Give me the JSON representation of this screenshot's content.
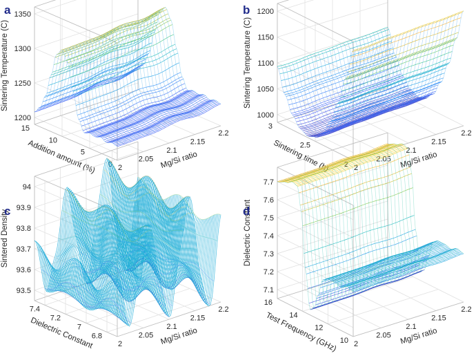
{
  "figure": {
    "colormap": [
      "#3e26a8",
      "#4755f4",
      "#2e87f7",
      "#1aa9df",
      "#1ebfaa",
      "#6bcc5e",
      "#c3c02c",
      "#fdb22f",
      "#f9e721"
    ],
    "wire_color_alpha": 0.85
  },
  "chart_data": [
    {
      "panel": "a",
      "type": "surface",
      "x_label": "Mg/Si ratio",
      "y_label": "Addition amount (%)",
      "z_label": "Sintering Temperature (C)",
      "x_ticks": [
        "2",
        "2.05",
        "2.1",
        "2.15",
        "2.2"
      ],
      "y_ticks": [
        "0",
        "5",
        "10",
        "15"
      ],
      "z_ticks": [
        "1200",
        "1250",
        "1300",
        "1350"
      ],
      "x_range": [
        2,
        2.2
      ],
      "y_range": [
        0,
        15
      ],
      "z_range": [
        1190,
        1360
      ],
      "profile_axis": "y",
      "profile": [
        [
          0,
          1210
        ],
        [
          1,
          1212
        ],
        [
          2,
          1209
        ],
        [
          3,
          1213
        ],
        [
          4,
          1210
        ],
        [
          5,
          1212
        ],
        [
          6,
          1209
        ],
        [
          7,
          1225
        ],
        [
          8,
          1262
        ],
        [
          9,
          1300
        ],
        [
          10,
          1315
        ],
        [
          11,
          1305
        ],
        [
          12,
          1272
        ],
        [
          13,
          1238
        ],
        [
          14,
          1218
        ],
        [
          15,
          1208
        ]
      ],
      "modulation": [
        [
          2,
          0
        ],
        [
          2.2,
          18
        ]
      ]
    },
    {
      "panel": "b",
      "type": "surface",
      "x_label": "Mg/Si ratio",
      "y_label": "Sintering time (h)",
      "z_label": "Sintering Temperature (C)",
      "x_ticks": [
        "2",
        "2.05",
        "2.1",
        "2.15",
        "2.2"
      ],
      "y_ticks": [
        "2",
        "2.5",
        "3"
      ],
      "z_ticks": [
        "1000",
        "1050",
        "1100",
        "1150",
        "1200"
      ],
      "x_range": [
        2,
        2.2
      ],
      "y_range": [
        2,
        3
      ],
      "z_range": [
        985,
        1215
      ],
      "profile_axis": "y",
      "profile": [
        [
          2,
          1202
        ],
        [
          2.1,
          1140
        ],
        [
          2.2,
          1085
        ],
        [
          2.3,
          1042
        ],
        [
          2.4,
          1012
        ],
        [
          2.5,
          997
        ],
        [
          2.6,
          992
        ],
        [
          2.7,
          999
        ],
        [
          2.8,
          1018
        ],
        [
          2.9,
          1050
        ],
        [
          3,
          1097
        ]
      ],
      "modulation": [
        [
          2,
          -8
        ],
        [
          2.2,
          8
        ]
      ]
    },
    {
      "panel": "c",
      "type": "surface",
      "x_label": "Mg/Si ratio",
      "y_label": "Dielectric Constant",
      "z_label": "Sintered Density",
      "x_ticks": [
        "2",
        "2.05",
        "2.1",
        "2.15",
        "2.2"
      ],
      "y_ticks": [
        "6.8",
        "7",
        "7.2",
        "7.4"
      ],
      "z_ticks": [
        "93.5",
        "93.6",
        "93.7",
        "93.8",
        "93.9",
        "94"
      ],
      "x_range": [
        2,
        2.2
      ],
      "y_range": [
        6.7,
        7.5
      ],
      "z_range": [
        93.45,
        94.05
      ],
      "profile_axis": "x",
      "profile": [
        [
          2,
          93.62
        ],
        [
          2.02,
          93.52
        ],
        [
          2.04,
          93.74
        ],
        [
          2.06,
          93.86
        ],
        [
          2.08,
          93.62
        ],
        [
          2.1,
          93.56
        ],
        [
          2.12,
          93.78
        ],
        [
          2.14,
          93.9
        ],
        [
          2.16,
          93.64
        ],
        [
          2.18,
          93.55
        ],
        [
          2.2,
          93.8
        ]
      ],
      "modulation": [
        [
          6.7,
          0.18
        ],
        [
          6.9,
          0.02
        ],
        [
          7.1,
          0.2
        ],
        [
          7.3,
          0.04
        ],
        [
          7.5,
          0.2
        ]
      ]
    },
    {
      "panel": "d",
      "type": "surface",
      "x_label": "Mg/Si ratio",
      "y_label": "Test Frequency (GHz)",
      "z_label": "Dielectric Constant",
      "x_ticks": [
        "2",
        "2.05",
        "2.1",
        "2.15",
        "2.2"
      ],
      "y_ticks": [
        "10",
        "12",
        "14",
        "16"
      ],
      "z_ticks": [
        "7.1",
        "7.2",
        "7.3",
        "7.4",
        "7.5",
        "7.6",
        "7.7"
      ],
      "x_range": [
        2,
        2.2
      ],
      "y_range": [
        10,
        16
      ],
      "z_range": [
        7.05,
        7.78
      ],
      "profile_axis": "y",
      "profile": [
        [
          10,
          7.3
        ],
        [
          10.5,
          7.31
        ],
        [
          11,
          7.29
        ],
        [
          11.5,
          7.3
        ],
        [
          12,
          7.3
        ],
        [
          12.4,
          7.28
        ],
        [
          12.8,
          7.18
        ],
        [
          13.1,
          7.1
        ],
        [
          13.4,
          7.08
        ],
        [
          13.8,
          7.3
        ],
        [
          14.1,
          7.6
        ],
        [
          14.4,
          7.73
        ],
        [
          14.8,
          7.74
        ],
        [
          15.3,
          7.72
        ],
        [
          16,
          7.7
        ]
      ],
      "modulation": [
        [
          2,
          0
        ],
        [
          2.2,
          0.03
        ]
      ]
    }
  ]
}
